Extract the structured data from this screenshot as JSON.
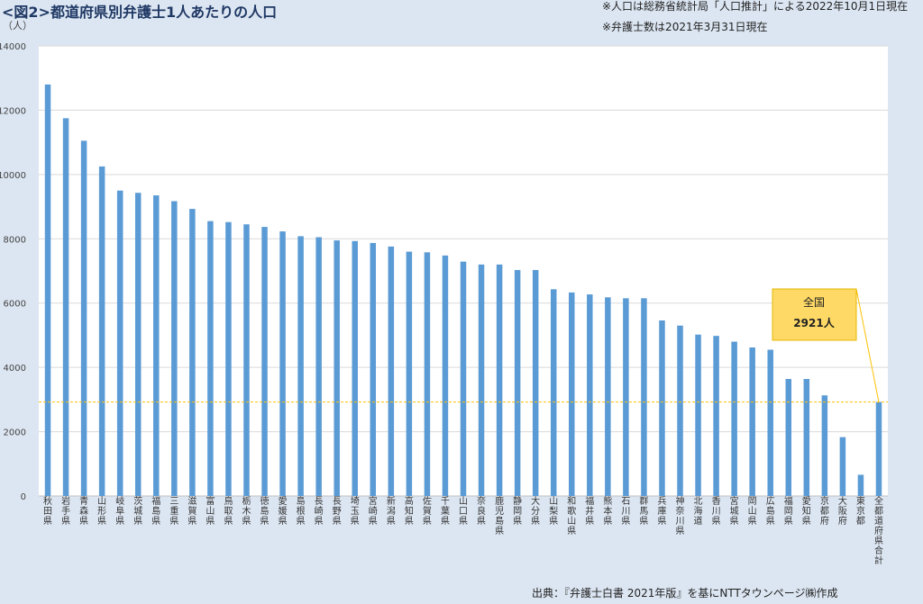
{
  "header": {
    "title": "<図2>都道府県別弁護士1人あたりの人口",
    "note1": "※人口は総務省統計局「人口推計」による2022年10月1日現在",
    "note2": "※弁護士数は2021年3月31日現在"
  },
  "source": "出典：『弁護士白書 2021年版』を基にNTTタウンページ㈱作成",
  "colors": {
    "bar": "#5b9bd5",
    "background": "#dce6f2",
    "plot": "#ffffff",
    "callout": "#ffd966",
    "average_line": "#ffc000"
  },
  "chart_data": {
    "type": "bar",
    "ylabel": "（人）",
    "ylim": [
      0,
      14000
    ],
    "yticks": [
      0,
      2000,
      4000,
      6000,
      8000,
      10000,
      12000,
      14000
    ],
    "grid": true,
    "categories": [
      "秋田県",
      "岩手県",
      "青森県",
      "山形県",
      "岐阜県",
      "茨城県",
      "福島県",
      "三重県",
      "滋賀県",
      "富山県",
      "鳥取県",
      "栃木県",
      "徳島県",
      "愛媛県",
      "島根県",
      "長崎県",
      "長野県",
      "埼玉県",
      "宮崎県",
      "新潟県",
      "高知県",
      "佐賀県",
      "千葉県",
      "山口県",
      "奈良県",
      "鹿児島県",
      "静岡県",
      "大分県",
      "山梨県",
      "和歌山県",
      "福井県",
      "熊本県",
      "石川県",
      "群馬県",
      "兵庫県",
      "神奈川県",
      "北海道",
      "香川県",
      "宮城県",
      "岡山県",
      "広島県",
      "福岡県",
      "愛知県",
      "京都府",
      "大阪府",
      "東京都",
      "全都道府県合計"
    ],
    "values": [
      12800,
      11750,
      11050,
      10250,
      9500,
      9430,
      9350,
      9170,
      8930,
      8550,
      8520,
      8450,
      8370,
      8230,
      8080,
      8050,
      7950,
      7930,
      7870,
      7760,
      7600,
      7580,
      7480,
      7290,
      7200,
      7200,
      7030,
      7030,
      6430,
      6330,
      6270,
      6180,
      6150,
      6150,
      5460,
      5300,
      5020,
      4980,
      4800,
      4620,
      4550,
      3640,
      3640,
      3130,
      1830,
      660,
      2921
    ],
    "annotations": {
      "callout_line1": "全国",
      "callout_line2": "2921人"
    }
  }
}
